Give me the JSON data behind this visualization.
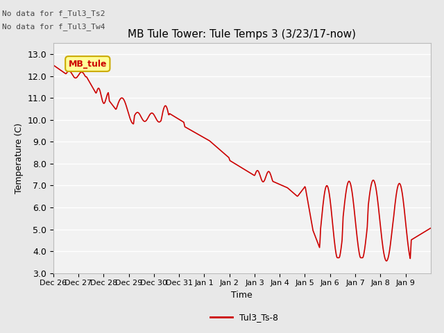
{
  "title": "MB Tule Tower: Tule Temps 3 (3/23/17-now)",
  "xlabel": "Time",
  "ylabel": "Temperature (C)",
  "annotation1": "No data for f_Tul3_Ts2",
  "annotation2": "No data for f_Tul3_Tw4",
  "legend_label": "Tul3_Ts-8",
  "inset_label": "MB_tule",
  "line_color": "#cc0000",
  "inset_bg": "#ffff99",
  "inset_border": "#ccaa00",
  "ylim": [
    3.0,
    13.5
  ],
  "yticks": [
    3.0,
    4.0,
    5.0,
    6.0,
    7.0,
    8.0,
    9.0,
    10.0,
    11.0,
    12.0,
    13.0
  ],
  "fig_bg": "#e8e8e8",
  "plot_bg": "#f2f2f2",
  "grid_color": "#ffffff",
  "figsize": [
    6.4,
    4.8
  ],
  "dpi": 100
}
